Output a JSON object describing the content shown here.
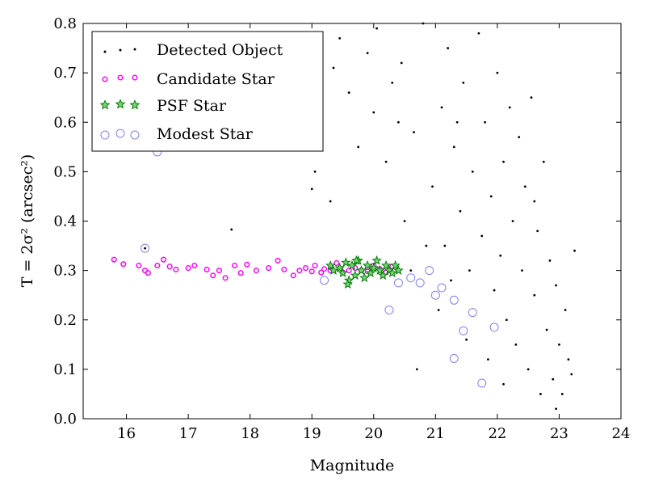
{
  "chart_data": {
    "type": "scatter",
    "title": "",
    "xlabel": "Magnitude",
    "ylabel": "T = 2σ² (arcsec²)",
    "xlim": [
      15.3,
      24
    ],
    "ylim": [
      0.0,
      0.8
    ],
    "xticks": [
      "16",
      "17",
      "18",
      "19",
      "20",
      "21",
      "22",
      "23",
      "24"
    ],
    "yticks": [
      "0.0",
      "0.1",
      "0.2",
      "0.3",
      "0.4",
      "0.5",
      "0.6",
      "0.7",
      "0.8"
    ],
    "grid": false,
    "legend_position": "top-left",
    "series": [
      {
        "name": "Detected Object",
        "marker": "dot",
        "color": "#000000",
        "points": [
          [
            16.3,
            0.345
          ],
          [
            17.7,
            0.383
          ],
          [
            19.0,
            0.465
          ],
          [
            19.05,
            0.5
          ],
          [
            19.3,
            0.44
          ],
          [
            19.35,
            0.71
          ],
          [
            19.45,
            0.77
          ],
          [
            19.6,
            0.66
          ],
          [
            19.75,
            0.55
          ],
          [
            19.9,
            0.74
          ],
          [
            20.0,
            0.62
          ],
          [
            20.05,
            0.79
          ],
          [
            20.2,
            0.52
          ],
          [
            20.3,
            0.68
          ],
          [
            20.45,
            0.72
          ],
          [
            20.5,
            0.4
          ],
          [
            20.65,
            0.58
          ],
          [
            20.8,
            0.8
          ],
          [
            20.95,
            0.47
          ],
          [
            21.1,
            0.63
          ],
          [
            21.15,
            0.35
          ],
          [
            21.2,
            0.75
          ],
          [
            21.3,
            0.55
          ],
          [
            21.4,
            0.42
          ],
          [
            21.45,
            0.68
          ],
          [
            21.55,
            0.3
          ],
          [
            21.6,
            0.5
          ],
          [
            21.7,
            0.78
          ],
          [
            21.75,
            0.37
          ],
          [
            21.8,
            0.6
          ],
          [
            21.9,
            0.45
          ],
          [
            21.95,
            0.26
          ],
          [
            22.0,
            0.7
          ],
          [
            22.05,
            0.33
          ],
          [
            22.1,
            0.52
          ],
          [
            22.15,
            0.2
          ],
          [
            22.2,
            0.63
          ],
          [
            22.25,
            0.4
          ],
          [
            22.3,
            0.15
          ],
          [
            22.35,
            0.57
          ],
          [
            22.4,
            0.3
          ],
          [
            22.45,
            0.47
          ],
          [
            22.5,
            0.1
          ],
          [
            22.55,
            0.65
          ],
          [
            22.6,
            0.25
          ],
          [
            22.65,
            0.38
          ],
          [
            22.7,
            0.05
          ],
          [
            22.75,
            0.52
          ],
          [
            22.8,
            0.18
          ],
          [
            22.85,
            0.32
          ],
          [
            22.9,
            0.08
          ],
          [
            22.95,
            0.27
          ],
          [
            23.0,
            0.15
          ],
          [
            23.05,
            0.05
          ],
          [
            23.1,
            0.22
          ],
          [
            23.15,
            0.12
          ],
          [
            23.2,
            0.09
          ],
          [
            23.25,
            0.34
          ],
          [
            22.95,
            0.02
          ],
          [
            22.6,
            0.44
          ],
          [
            21.25,
            0.28
          ],
          [
            20.7,
            0.1
          ],
          [
            21.05,
            0.22
          ],
          [
            21.5,
            0.16
          ],
          [
            21.85,
            0.12
          ],
          [
            22.1,
            0.07
          ],
          [
            20.85,
            0.35
          ],
          [
            20.6,
            0.3
          ],
          [
            21.35,
            0.6
          ],
          [
            20.4,
            0.6
          ]
        ]
      },
      {
        "name": "Candidate Star",
        "marker": "circle",
        "color": "#ff00ff",
        "points": [
          [
            15.8,
            0.322
          ],
          [
            15.95,
            0.313
          ],
          [
            16.2,
            0.31
          ],
          [
            16.3,
            0.3
          ],
          [
            16.35,
            0.295
          ],
          [
            16.5,
            0.31
          ],
          [
            16.6,
            0.322
          ],
          [
            16.7,
            0.308
          ],
          [
            16.8,
            0.302
          ],
          [
            17.0,
            0.305
          ],
          [
            17.1,
            0.31
          ],
          [
            17.3,
            0.302
          ],
          [
            17.4,
            0.29
          ],
          [
            17.5,
            0.3
          ],
          [
            17.6,
            0.285
          ],
          [
            17.75,
            0.31
          ],
          [
            17.85,
            0.295
          ],
          [
            17.95,
            0.312
          ],
          [
            18.1,
            0.3
          ],
          [
            18.3,
            0.305
          ],
          [
            18.45,
            0.32
          ],
          [
            18.55,
            0.302
          ],
          [
            18.7,
            0.29
          ],
          [
            18.8,
            0.3
          ],
          [
            18.9,
            0.305
          ],
          [
            19.0,
            0.298
          ],
          [
            19.05,
            0.31
          ],
          [
            19.15,
            0.296
          ],
          [
            19.2,
            0.303
          ],
          [
            19.3,
            0.3
          ],
          [
            19.4,
            0.315
          ],
          [
            19.5,
            0.296
          ],
          [
            19.6,
            0.3
          ],
          [
            19.7,
            0.305
          ],
          [
            19.8,
            0.3
          ],
          [
            19.9,
            0.298
          ],
          [
            20.0,
            0.31
          ],
          [
            20.1,
            0.303
          ],
          [
            20.2,
            0.296
          ],
          [
            20.3,
            0.308
          ]
        ]
      },
      {
        "name": "PSF Star",
        "marker": "star",
        "color": "#008000",
        "points": [
          [
            19.3,
            0.31
          ],
          [
            19.35,
            0.3
          ],
          [
            19.45,
            0.305
          ],
          [
            19.5,
            0.295
          ],
          [
            19.55,
            0.316
          ],
          [
            19.6,
            0.28
          ],
          [
            19.65,
            0.31
          ],
          [
            19.7,
            0.29
          ],
          [
            19.75,
            0.32
          ],
          [
            19.8,
            0.3
          ],
          [
            19.85,
            0.285
          ],
          [
            19.9,
            0.31
          ],
          [
            19.95,
            0.295
          ],
          [
            20.0,
            0.305
          ],
          [
            20.05,
            0.32
          ],
          [
            20.1,
            0.3
          ],
          [
            20.15,
            0.29
          ],
          [
            20.2,
            0.31
          ],
          [
            20.25,
            0.3
          ],
          [
            20.3,
            0.295
          ],
          [
            20.35,
            0.31
          ],
          [
            20.4,
            0.3
          ],
          [
            19.58,
            0.272
          ],
          [
            19.72,
            0.32
          ]
        ]
      },
      {
        "name": "Modest Star",
        "marker": "open-circle",
        "color": "#8080ff",
        "points": [
          [
            16.3,
            0.345
          ],
          [
            16.5,
            0.54
          ],
          [
            19.2,
            0.28
          ],
          [
            20.25,
            0.22
          ],
          [
            20.4,
            0.275
          ],
          [
            20.6,
            0.285
          ],
          [
            20.75,
            0.275
          ],
          [
            21.0,
            0.25
          ],
          [
            21.1,
            0.265
          ],
          [
            21.3,
            0.24
          ],
          [
            21.45,
            0.178
          ],
          [
            21.6,
            0.215
          ],
          [
            21.95,
            0.185
          ],
          [
            21.3,
            0.122
          ],
          [
            21.75,
            0.072
          ],
          [
            20.9,
            0.3
          ]
        ]
      }
    ]
  }
}
